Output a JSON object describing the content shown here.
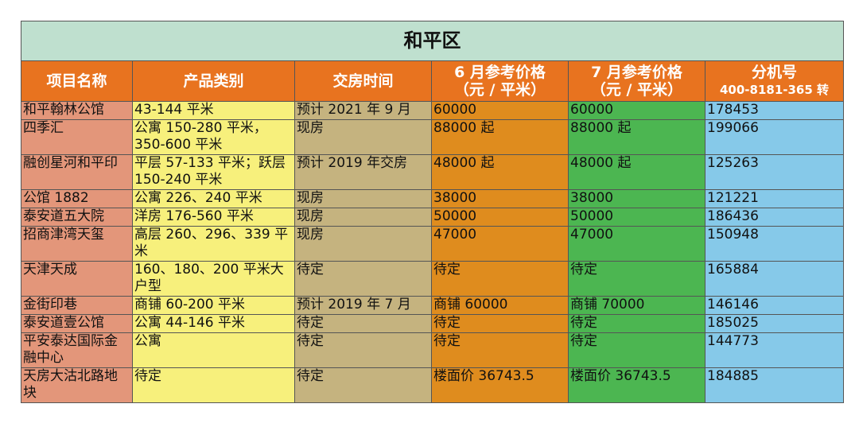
{
  "title": "和平区",
  "headers": {
    "name": "项目名称",
    "type": "产品类别",
    "delivery": "交房时间",
    "june_line1": "6 月参考价格",
    "june_line2": "（元 / 平米）",
    "july_line1": "7 月参考价格",
    "july_line2": "（元 / 平米）",
    "ext_line1": "分机号",
    "ext_line2": "400-8181-365 转"
  },
  "rows": [
    {
      "name": "和平翰林公馆",
      "type": "43-144 平米",
      "delivery": "预计 2021 年 9 月",
      "june": "60000",
      "july": "60000",
      "ext": "178453"
    },
    {
      "name": "四季汇",
      "type": "公寓 150-280 平米，350-600 平米",
      "delivery": "现房",
      "june": "88000 起",
      "july": "88000 起",
      "ext": "199066"
    },
    {
      "name": "融创星河和平印",
      "type": "平层 57-133 平米；跃层 150-240 平米",
      "delivery": "预计 2019 年交房",
      "june": "48000 起",
      "july": "48000 起",
      "ext": "125263"
    },
    {
      "name": "公馆 1882",
      "type": "公寓 226、240 平米",
      "delivery": "现房",
      "june": "38000",
      "july": "38000",
      "ext": "121221"
    },
    {
      "name": "泰安道五大院",
      "type": "洋房 176-560 平米",
      "delivery": "现房",
      "june": "50000",
      "july": "50000",
      "ext": "186436"
    },
    {
      "name": "招商津湾天玺",
      "type": "高层 260、296、339 平米",
      "delivery": "现房",
      "june": "47000",
      "july": "47000",
      "ext": "150948"
    },
    {
      "name": "天津天成",
      "type": "160、180、200 平米大 户型",
      "delivery": "待定",
      "june": "待定",
      "july": "待定",
      "ext": "165884"
    },
    {
      "name": "金街印巷",
      "type": "商铺 60-200 平米",
      "delivery": "预计 2019 年 7 月",
      "june": "商铺 60000",
      "july": "商铺 70000",
      "ext": "146146"
    },
    {
      "name": "泰安道壹公馆",
      "type": "公寓 44-146 平米",
      "delivery": "待定",
      "june": "待定",
      "july": "待定",
      "ext": "185025"
    },
    {
      "name": "平安泰达国际金融中心",
      "type": "公寓",
      "delivery": "待定",
      "june": "待定",
      "july": "待定",
      "ext": "144773"
    },
    {
      "name": "天房大沽北路地块",
      "type": "待定",
      "delivery": "待定",
      "june": "楼面价 36743.5",
      "july": "楼面价 36743.5",
      "ext": "184885"
    }
  ]
}
